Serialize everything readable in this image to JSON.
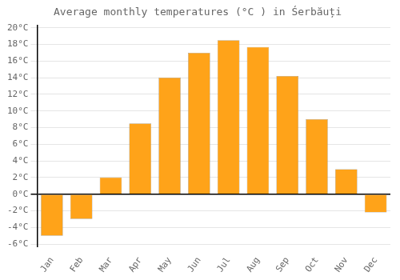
{
  "chart_data": {
    "type": "bar",
    "title": "Average monthly temperatures (°C ) in Śerbăuți",
    "categories": [
      "Jan",
      "Feb",
      "Mar",
      "Apr",
      "May",
      "Jun",
      "Jul",
      "Aug",
      "Sep",
      "Oct",
      "Nov",
      "Dec"
    ],
    "values": [
      -5.0,
      -3.0,
      2.0,
      8.5,
      14.0,
      17.0,
      18.5,
      17.7,
      14.2,
      9.0,
      3.0,
      -2.2
    ],
    "color": "#FFA319",
    "ylim": [
      -6.3,
      20.3
    ],
    "yticks": [
      {
        "value": -6,
        "label": "-6°C"
      },
      {
        "value": -4,
        "label": "-4°C"
      },
      {
        "value": -2,
        "label": "-2°C"
      },
      {
        "value": 0,
        "label": "0°C"
      },
      {
        "value": 2,
        "label": "2°C"
      },
      {
        "value": 4,
        "label": "4°C"
      },
      {
        "value": 6,
        "label": "6°C"
      },
      {
        "value": 8,
        "label": "8°C"
      },
      {
        "value": 10,
        "label": "10°C"
      },
      {
        "value": 12,
        "label": "12°C"
      },
      {
        "value": 14,
        "label": "14°C"
      },
      {
        "value": 16,
        "label": "16°C"
      },
      {
        "value": 18,
        "label": "18°C"
      },
      {
        "value": 20,
        "label": "20°C"
      }
    ],
    "grid": true
  }
}
